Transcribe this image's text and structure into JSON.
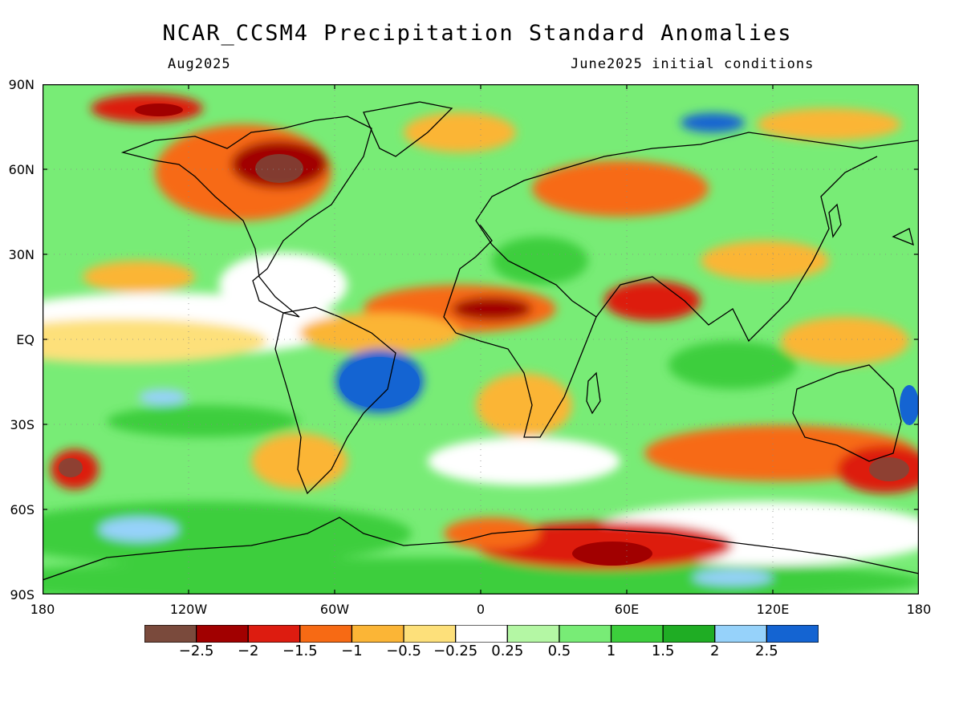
{
  "header": {
    "title": "NCAR_CCSM4 Precipitation Standard Anomalies",
    "valid_month": "Aug2025",
    "init_conditions": "June2025 initial conditions"
  },
  "axes": {
    "lat_labels": [
      "90N",
      "60N",
      "30N",
      "EQ",
      "30S",
      "60S",
      "90S"
    ],
    "lon_labels": [
      "180",
      "120W",
      "60W",
      "0",
      "60E",
      "120E",
      "180"
    ]
  },
  "colorbar": {
    "colors": [
      "#7a4a3c",
      "#a10000",
      "#dd1c10",
      "#f76a14",
      "#fbb536",
      "#fde07a",
      "#ffffff",
      "#b4f7a4",
      "#78ec76",
      "#3cce3c",
      "#1fad24",
      "#96d2fa",
      "#1464d2"
    ],
    "labels": [
      "-2.5",
      "-2",
      "-1.5",
      "-1",
      "-0.5",
      "-0.25",
      "0.25",
      "0.5",
      "1",
      "1.5",
      "2",
      "2.5"
    ]
  }
}
